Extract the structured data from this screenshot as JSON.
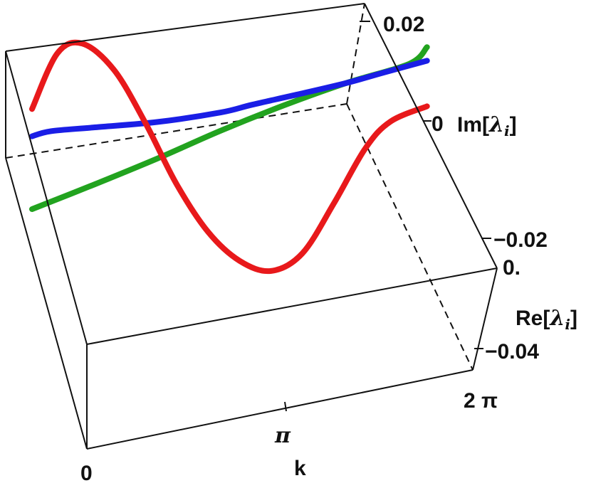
{
  "chart_data": {
    "type": "line",
    "dimension": "3d",
    "x_axis": {
      "label": "k",
      "ticks": [
        {
          "label": "0",
          "value": 0
        },
        {
          "label": "π",
          "value": 3.14159
        },
        {
          "label": "2 π",
          "value": 6.28318
        }
      ],
      "range": [
        0,
        6.28318
      ]
    },
    "y_axis": {
      "label": "Re[λi]",
      "ticks": [
        {
          "label": "0.",
          "value": 0
        },
        {
          "label": "−0.02",
          "value": -0.02
        },
        {
          "label": "−0.04",
          "value": -0.04
        }
      ]
    },
    "z_axis": {
      "label": "Im[λi]",
      "ticks": [
        {
          "label": "0.02",
          "value": 0.02
        },
        {
          "label": "0",
          "value": 0
        },
        {
          "label": "−0.02",
          "value": -0.02
        }
      ]
    },
    "series": [
      {
        "color": "#e8191b",
        "points": [
          [
            0,
            0.012
          ],
          [
            0.4,
            0.024
          ],
          [
            0.8,
            0.026
          ],
          [
            1.3,
            0.02
          ],
          [
            1.8,
            0.008
          ],
          [
            2.3,
            -0.006
          ],
          [
            2.8,
            -0.017
          ],
          [
            3.3,
            -0.024
          ],
          [
            3.8,
            -0.027
          ],
          [
            4.3,
            -0.024
          ],
          [
            4.8,
            -0.014
          ],
          [
            5.3,
            -0.003
          ],
          [
            5.7,
            0.002
          ],
          [
            6.28,
            0.004
          ]
        ]
      },
      {
        "color": "#1a1ee6",
        "points": [
          [
            0,
            0.006
          ],
          [
            0.3,
            0.007
          ],
          [
            1.0,
            0.0075
          ],
          [
            2.0,
            0.008
          ],
          [
            3.0,
            0.009
          ],
          [
            3.5,
            0.01
          ],
          [
            4.2,
            0.011
          ],
          [
            5.0,
            0.012
          ],
          [
            5.6,
            0.013
          ],
          [
            6.28,
            0.014
          ]
        ]
      },
      {
        "color": "#22a31f",
        "points": [
          [
            0,
            -0.01
          ],
          [
            1.0,
            -0.005
          ],
          [
            2.0,
            0.0
          ],
          [
            3.0,
            0.005
          ],
          [
            4.0,
            0.009
          ],
          [
            5.0,
            0.012
          ],
          [
            6.0,
            0.014
          ],
          [
            6.28,
            0.017
          ]
        ]
      }
    ],
    "grid": false
  },
  "labels": {
    "x_axis_name": "k",
    "y_axis_prefix": "Re[",
    "y_axis_lambda": "λ",
    "y_axis_sub": "i",
    "y_axis_suffix": "]",
    "z_axis_prefix": "Im[",
    "z_axis_lambda": "λ",
    "z_axis_sub": "i",
    "z_axis_suffix": "]"
  }
}
